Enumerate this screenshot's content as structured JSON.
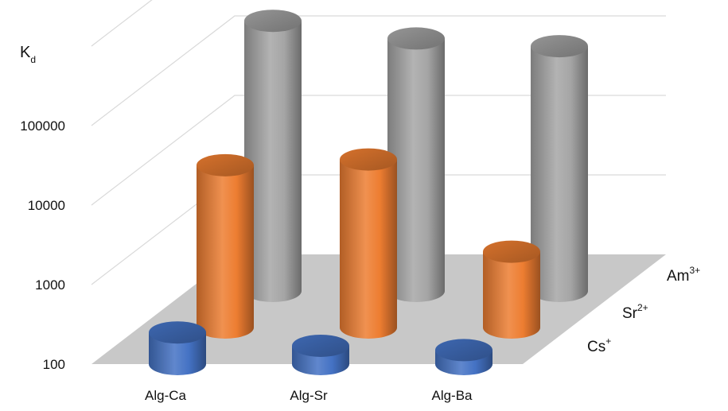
{
  "chart_data": {
    "type": "bar",
    "subtype": "3d-cylinder",
    "ylabel": {
      "main": "K",
      "sub": "d"
    },
    "scale": "log",
    "ylim": [
      100,
      1000000
    ],
    "yticks": [
      "100",
      "1000",
      "10000",
      "100000"
    ],
    "grid": true,
    "categories": [
      "Alg-Ca",
      "Alg-Sr",
      "Alg-Ba"
    ],
    "series": [
      {
        "name": "Cs",
        "sup": "+",
        "color": "#4472C4",
        "values": [
          250,
          170,
          150
        ]
      },
      {
        "name": "Sr",
        "sup": "2+",
        "color": "#ED7D31",
        "values": [
          11000,
          13000,
          900
        ]
      },
      {
        "name": "Am",
        "sup": "3+",
        "color": "#A5A5A5",
        "values": [
          250000,
          150000,
          120000
        ]
      }
    ]
  }
}
